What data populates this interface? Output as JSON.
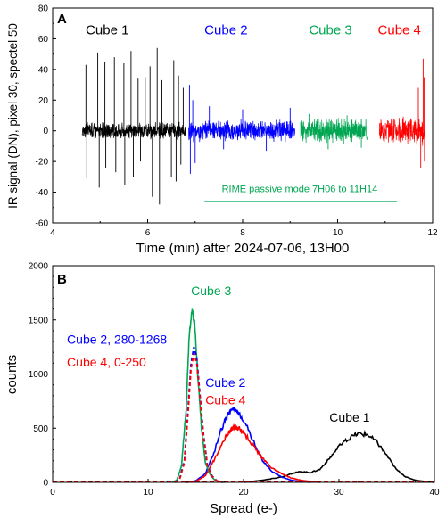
{
  "chart_data": [
    {
      "panel": "A",
      "type": "line",
      "xlabel": "Time (min) after 2024-07-06, 13H00",
      "ylabel": "IR signal (DN), pixel 30, spectel 50",
      "xlim": [
        4,
        12
      ],
      "ylim": [
        -60,
        80
      ],
      "xticks": [
        4,
        6,
        8,
        10,
        12
      ],
      "yticks": [
        -60,
        -40,
        -20,
        0,
        20,
        40,
        60,
        80
      ],
      "grid": false,
      "series": [
        {
          "name": "Cube 1",
          "color": "#000000",
          "x_start": 4.62,
          "x_end": 6.8,
          "noise_range": [
            -6,
            6
          ],
          "spikes": [
            [
              4.7,
              43
            ],
            [
              4.72,
              -31
            ],
            [
              4.95,
              51
            ],
            [
              4.98,
              -37
            ],
            [
              5.1,
              45
            ],
            [
              5.12,
              -24
            ],
            [
              5.3,
              48
            ],
            [
              5.33,
              -27
            ],
            [
              5.5,
              44
            ],
            [
              5.52,
              -35
            ],
            [
              5.65,
              52
            ],
            [
              5.7,
              -30
            ],
            [
              5.8,
              34
            ],
            [
              5.85,
              -20
            ],
            [
              5.95,
              35
            ],
            [
              6.05,
              42
            ],
            [
              6.1,
              -43
            ],
            [
              6.2,
              54
            ],
            [
              6.25,
              -48
            ],
            [
              6.3,
              33
            ],
            [
              6.45,
              32
            ],
            [
              6.5,
              -30
            ],
            [
              6.55,
              46
            ],
            [
              6.6,
              -33
            ],
            [
              6.65,
              36
            ],
            [
              6.7,
              -22
            ],
            [
              6.75,
              28
            ]
          ]
        },
        {
          "name": "Cube 2",
          "color": "#0000ff",
          "x_start": 6.86,
          "x_end": 9.1,
          "noise_range": [
            -8,
            8
          ],
          "spikes": [
            [
              6.88,
              30
            ],
            [
              6.9,
              -28
            ],
            [
              6.95,
              20
            ],
            [
              7.0,
              -21
            ],
            [
              7.3,
              16
            ],
            [
              7.6,
              -12
            ],
            [
              8.0,
              14
            ],
            [
              8.5,
              -13
            ],
            [
              9.0,
              15
            ]
          ]
        },
        {
          "name": "Cube 3",
          "color": "#00a651",
          "x_start": 9.22,
          "x_end": 10.62,
          "noise_range": [
            -9,
            9
          ],
          "spikes": [
            [
              9.4,
              11
            ],
            [
              9.8,
              -12
            ],
            [
              10.2,
              10
            ],
            [
              10.5,
              -11
            ]
          ]
        },
        {
          "name": "Cube 4",
          "color": "#ff0000",
          "x_start": 10.88,
          "x_end": 11.84,
          "noise_range": [
            -10,
            10
          ],
          "spikes": [
            [
              11.7,
              28
            ],
            [
              11.75,
              -24
            ],
            [
              11.8,
              47
            ],
            [
              11.83,
              -20
            ],
            [
              11.82,
              35
            ]
          ]
        }
      ],
      "labels": [
        {
          "text": "Cube 1",
          "color": "#000000",
          "x": 5.15,
          "y": 63
        },
        {
          "text": "Cube 2",
          "color": "#0000ff",
          "x": 7.65,
          "y": 63
        },
        {
          "text": "Cube 3",
          "color": "#00a651",
          "x": 9.85,
          "y": 63
        },
        {
          "text": "Cube 4",
          "color": "#ff0000",
          "x": 11.3,
          "y": 63
        }
      ],
      "annotation": {
        "text": "RIME passive mode 7H06 to 11H14",
        "color": "#00a651",
        "x_from": 7.2,
        "x_to": 11.25,
        "y": -46,
        "text_y": -40,
        "text_x": 9.2
      }
    },
    {
      "panel": "B",
      "type": "line",
      "xlabel": "Spread (e-)",
      "ylabel": "counts",
      "xlim": [
        0,
        40
      ],
      "ylim": [
        0,
        2000
      ],
      "xticks": [
        0,
        10,
        20,
        30,
        40
      ],
      "yticks": [
        0,
        500,
        1000,
        1500,
        2000
      ],
      "grid": false,
      "series": [
        {
          "name": "Cube 1",
          "color": "#000000",
          "style": "solid",
          "x": [
            20,
            22,
            24,
            25,
            26,
            27,
            28,
            29,
            30,
            31,
            32,
            33,
            34,
            35,
            36,
            37,
            38,
            39,
            40
          ],
          "y": [
            0,
            20,
            50,
            80,
            100,
            90,
            120,
            220,
            330,
            400,
            450,
            440,
            370,
            250,
            120,
            50,
            20,
            8,
            0
          ]
        },
        {
          "name": "Cube 2",
          "color": "#0000ff",
          "style": "solid",
          "x": [
            14,
            15,
            16,
            17,
            17.5,
            18,
            18.5,
            19,
            19.5,
            20,
            21,
            22,
            23,
            24,
            25,
            26,
            27
          ],
          "y": [
            0,
            15,
            80,
            300,
            450,
            560,
            640,
            670,
            640,
            580,
            390,
            200,
            100,
            50,
            20,
            8,
            0
          ]
        },
        {
          "name": "Cube 4",
          "color": "#ff0000",
          "style": "solid",
          "x": [
            14,
            15,
            16,
            17,
            18,
            18.5,
            19,
            19.5,
            20,
            21,
            22,
            23,
            24,
            25,
            26,
            27,
            28
          ],
          "y": [
            0,
            10,
            60,
            220,
            400,
            470,
            510,
            500,
            460,
            340,
            220,
            130,
            80,
            40,
            20,
            8,
            0
          ]
        },
        {
          "name": "Cube 3",
          "color": "#00a651",
          "style": "solid",
          "x": [
            12.5,
            13,
            13.5,
            14,
            14.3,
            14.6,
            14.9,
            15.2,
            15.6,
            16,
            16.5,
            17,
            17.5,
            18
          ],
          "y": [
            0,
            20,
            150,
            700,
            1350,
            1600,
            1450,
            1000,
            500,
            180,
            70,
            20,
            5,
            0
          ]
        },
        {
          "name": "Cube 2, 280-1268",
          "color": "#0000ff",
          "style": "dashed",
          "x": [
            12.8,
            13.3,
            13.8,
            14.2,
            14.5,
            14.8,
            15.1,
            15.4,
            15.8,
            16.2,
            16.7,
            17.2,
            17.8
          ],
          "y": [
            0,
            30,
            200,
            700,
            1100,
            1250,
            1150,
            850,
            450,
            170,
            60,
            15,
            0
          ]
        },
        {
          "name": "Cube 4, 0-250",
          "color": "#ff0000",
          "style": "dashed",
          "x": [
            12.8,
            13.3,
            13.8,
            14.2,
            14.5,
            14.8,
            15.1,
            15.4,
            15.8,
            16.2,
            16.7,
            17.2,
            17.8
          ],
          "y": [
            0,
            25,
            180,
            650,
            1050,
            1190,
            1100,
            820,
            430,
            160,
            55,
            15,
            0
          ]
        }
      ],
      "labels": [
        {
          "text": "Cube 3",
          "color": "#00a651",
          "x": 14.5,
          "y": 1730
        },
        {
          "text": "Cube 2, 280-1268",
          "color": "#0000ff",
          "x": 1.5,
          "y": 1280
        },
        {
          "text": "Cube 4, 0-250",
          "color": "#ff0000",
          "x": 1.5,
          "y": 1070
        },
        {
          "text": "Cube 2",
          "color": "#0000ff",
          "x": 16.0,
          "y": 880
        },
        {
          "text": "Cube 4",
          "color": "#ff0000",
          "x": 16.0,
          "y": 720
        },
        {
          "text": "Cube 1",
          "color": "#000000",
          "x": 29.0,
          "y": 560
        }
      ]
    }
  ]
}
